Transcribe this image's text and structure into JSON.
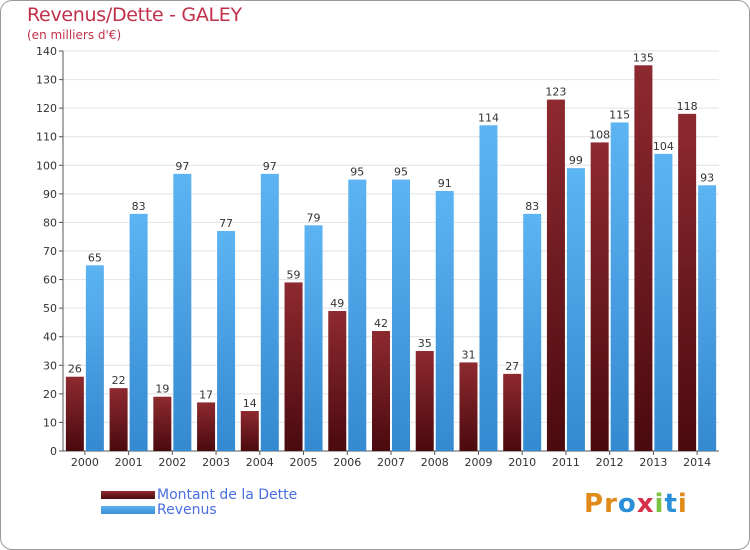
{
  "header": {
    "title": "Revenus/Dette - GALEY",
    "subtitle": "(en milliers d'€)"
  },
  "legend": [
    {
      "label": "Montant de la Dette",
      "color": "#7a1f24"
    },
    {
      "label": "Revenus",
      "color": "#4aa3e8"
    }
  ],
  "logo": {
    "text": "Proxiti",
    "letters": [
      {
        "ch": "P",
        "color": "#e08a1a"
      },
      {
        "ch": "r",
        "color": "#e08a1a"
      },
      {
        "ch": "o",
        "color": "#2a8fd8"
      },
      {
        "ch": "x",
        "color": "#d6304a"
      },
      {
        "ch": "i",
        "color": "#7cc242"
      },
      {
        "ch": "t",
        "color": "#2a8fd8"
      },
      {
        "ch": "i",
        "color": "#e08a1a"
      }
    ]
  },
  "chart_data": {
    "type": "bar",
    "title": "Revenus/Dette - GALEY",
    "subtitle": "(en milliers d'€)",
    "categories": [
      "2000",
      "2001",
      "2002",
      "2003",
      "2004",
      "2005",
      "2006",
      "2007",
      "2008",
      "2009",
      "2010",
      "2011",
      "2012",
      "2013",
      "2014"
    ],
    "series": [
      {
        "name": "Montant de la Dette",
        "color": "#7a1f24",
        "values": [
          26,
          22,
          19,
          17,
          14,
          59,
          49,
          42,
          35,
          31,
          27,
          123,
          108,
          135,
          118
        ]
      },
      {
        "name": "Revenus",
        "color": "#4aa3e8",
        "values": [
          65,
          83,
          97,
          77,
          97,
          79,
          95,
          95,
          91,
          114,
          83,
          99,
          115,
          104,
          93
        ]
      }
    ],
    "ylim": [
      0,
      140
    ],
    "yticks": [
      0,
      10,
      20,
      30,
      40,
      50,
      60,
      70,
      80,
      90,
      100,
      110,
      120,
      130,
      140
    ],
    "grid": true,
    "legend_position": "bottom-left"
  }
}
